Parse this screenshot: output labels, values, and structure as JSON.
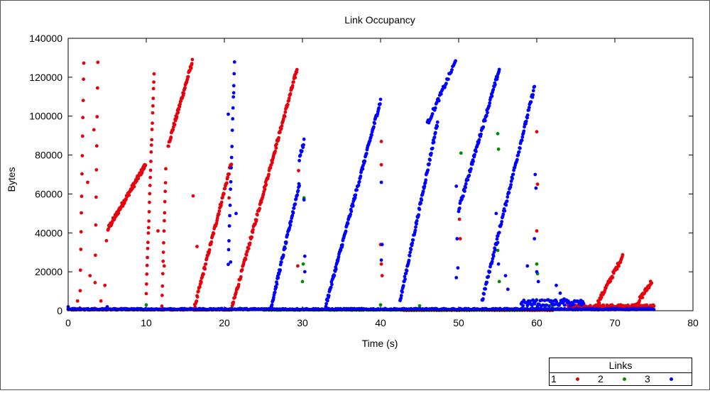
{
  "chart_data": {
    "type": "scatter",
    "title": "Link Occupancy",
    "xlabel": "Time (s)",
    "ylabel": "Bytes",
    "xlim": [
      0,
      80
    ],
    "ylim": [
      0,
      140000
    ],
    "x_ticks": [
      0,
      10,
      20,
      30,
      40,
      50,
      60,
      70,
      80
    ],
    "y_ticks": [
      0,
      20000,
      40000,
      60000,
      80000,
      100000,
      120000,
      140000
    ],
    "grid": false,
    "legend": {
      "title": "Links",
      "placement": "bottom-right",
      "entries": [
        "1",
        "2",
        "3"
      ]
    },
    "series": [
      {
        "name": "1",
        "color": "#e8000b",
        "segments": [
          {
            "type": "ramp",
            "x0": 1.5,
            "x1": 2.0,
            "y0": 1000,
            "y1": 128000,
            "n": 14
          },
          {
            "type": "ramp",
            "x0": 3.4,
            "x1": 3.8,
            "y0": 1000,
            "y1": 128000,
            "n": 10
          },
          {
            "type": "ramp",
            "x0": 5.1,
            "x1": 9.9,
            "y0": 42000,
            "y1": 75000,
            "n": 90
          },
          {
            "type": "ramp",
            "x0": 10.0,
            "x1": 11.0,
            "y0": 10000,
            "y1": 122000,
            "n": 28
          },
          {
            "type": "ramp",
            "x0": 12.0,
            "x1": 12.5,
            "y0": 3000,
            "y1": 72000,
            "n": 14
          },
          {
            "type": "ramp",
            "x0": 12.8,
            "x1": 15.9,
            "y0": 85000,
            "y1": 128000,
            "n": 60
          },
          {
            "type": "ramp",
            "x0": 16.2,
            "x1": 20.9,
            "y0": 2000,
            "y1": 76000,
            "n": 80
          },
          {
            "type": "ramp",
            "x0": 21.0,
            "x1": 29.3,
            "y0": 2000,
            "y1": 124000,
            "n": 150
          },
          {
            "type": "ramp",
            "x0": 67.5,
            "x1": 71.0,
            "y0": 1500,
            "y1": 28000,
            "n": 50
          },
          {
            "type": "ramp",
            "x0": 72.5,
            "x1": 74.7,
            "y0": 1500,
            "y1": 15000,
            "n": 35
          },
          {
            "type": "base",
            "x0": 0.0,
            "x1": 21.0,
            "y": 600,
            "n": 220
          },
          {
            "type": "base",
            "x0": 64.0,
            "x1": 75.0,
            "y": 2200,
            "n": 120
          },
          {
            "type": "base",
            "x0": 43.0,
            "x1": 62.0,
            "y": 200,
            "n": 60
          }
        ],
        "points": [
          [
            1.2,
            5000
          ],
          [
            2.5,
            66000
          ],
          [
            2.8,
            18000
          ],
          [
            3.3,
            93000
          ],
          [
            4.2,
            5000
          ],
          [
            4.7,
            13000
          ],
          [
            4.9,
            36000
          ],
          [
            11.5,
            41000
          ],
          [
            12.3,
            23000
          ],
          [
            16.0,
            59000
          ],
          [
            16.5,
            33000
          ],
          [
            20.6,
            58000
          ],
          [
            29.5,
            72000
          ],
          [
            29.4,
            23000
          ],
          [
            40.1,
            87000
          ],
          [
            40.1,
            75000
          ],
          [
            40.0,
            34000
          ],
          [
            40.1,
            24000
          ],
          [
            40.2,
            18000
          ],
          [
            50.1,
            47000
          ],
          [
            50.2,
            37000
          ],
          [
            60.0,
            92000
          ],
          [
            60.1,
            65000
          ],
          [
            60.0,
            41000
          ]
        ]
      },
      {
        "name": "2",
        "color": "#008c00",
        "segments": [
          {
            "type": "base",
            "x0": 25.0,
            "x1": 58.0,
            "y": 500,
            "n": 320
          }
        ],
        "points": [
          [
            10.0,
            3000
          ],
          [
            22.0,
            1200
          ],
          [
            30.0,
            15000
          ],
          [
            30.1,
            24000
          ],
          [
            30.2,
            58000
          ],
          [
            40.0,
            3000
          ],
          [
            45.0,
            2500
          ],
          [
            50.3,
            81000
          ],
          [
            55.0,
            91000
          ],
          [
            55.1,
            83000
          ],
          [
            55.0,
            31000
          ],
          [
            55.2,
            15000
          ],
          [
            60.0,
            24000
          ],
          [
            60.1,
            19000
          ],
          [
            62.0,
            2000
          ]
        ]
      },
      {
        "name": "3",
        "color": "#0000ff",
        "segments": [
          {
            "type": "ramp",
            "x0": 20.5,
            "x1": 21.3,
            "y0": 25000,
            "y1": 128000,
            "n": 18
          },
          {
            "type": "ramp",
            "x0": 26.0,
            "x1": 29.6,
            "y0": 2000,
            "y1": 65000,
            "n": 70
          },
          {
            "type": "ramp",
            "x0": 29.6,
            "x1": 30.2,
            "y0": 78000,
            "y1": 87000,
            "n": 10
          },
          {
            "type": "ramp",
            "x0": 33.0,
            "x1": 40.0,
            "y0": 3000,
            "y1": 108000,
            "n": 130
          },
          {
            "type": "ramp",
            "x0": 42.5,
            "x1": 47.3,
            "y0": 5000,
            "y1": 97000,
            "n": 90
          },
          {
            "type": "ramp",
            "x0": 46.0,
            "x1": 49.6,
            "y0": 96000,
            "y1": 128000,
            "n": 40
          },
          {
            "type": "ramp",
            "x0": 50.0,
            "x1": 55.2,
            "y0": 52000,
            "y1": 124000,
            "n": 90
          },
          {
            "type": "ramp",
            "x0": 53.0,
            "x1": 59.7,
            "y0": 5000,
            "y1": 115000,
            "n": 110
          },
          {
            "type": "base",
            "x0": 0.0,
            "x1": 75.0,
            "y": 800,
            "n": 500
          },
          {
            "type": "base",
            "x0": 58.0,
            "x1": 66.0,
            "y": 4000,
            "n": 70
          }
        ],
        "points": [
          [
            0.0,
            2000
          ],
          [
            5.0,
            2000
          ],
          [
            20.5,
            101000
          ],
          [
            21.2,
            112000
          ],
          [
            21.5,
            50000
          ],
          [
            20.8,
            25000
          ],
          [
            30.2,
            57000
          ],
          [
            30.3,
            28000
          ],
          [
            30.3,
            20000
          ],
          [
            40.1,
            66000
          ],
          [
            40.2,
            34000
          ],
          [
            40.1,
            26000
          ],
          [
            49.7,
            64000
          ],
          [
            49.8,
            37000
          ],
          [
            49.9,
            22000
          ],
          [
            49.7,
            17000
          ],
          [
            54.8,
            50000
          ],
          [
            55.0,
            35000
          ],
          [
            55.1,
            24000
          ],
          [
            56.0,
            18000
          ],
          [
            56.3,
            11000
          ],
          [
            58.8,
            23000
          ],
          [
            59.8,
            70000
          ],
          [
            59.9,
            63000
          ],
          [
            59.7,
            37000
          ],
          [
            60.0,
            20000
          ],
          [
            60.2,
            15000
          ],
          [
            62.5,
            13000
          ],
          [
            63.0,
            9000
          ],
          [
            63.5,
            6000
          ]
        ]
      }
    ]
  }
}
